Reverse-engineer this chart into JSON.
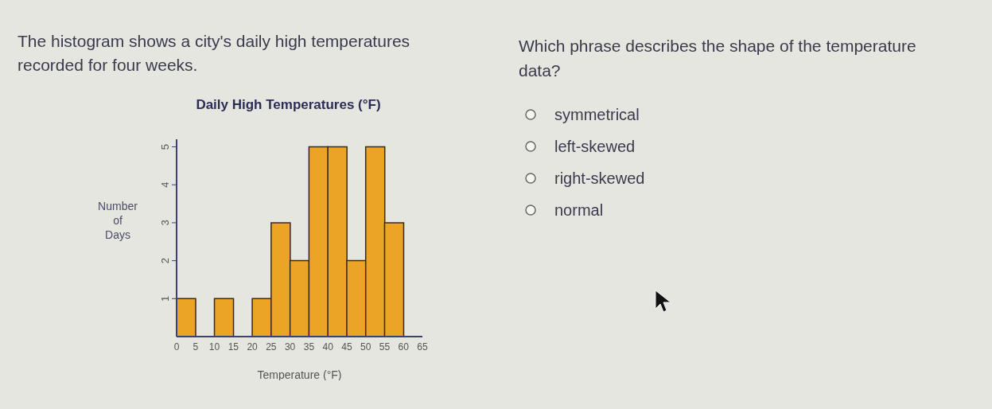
{
  "chart_data": [
    {
      "type": "histogram",
      "title": "Daily High Temperatures (°F)",
      "annotations": [
        "The histogram shows a city's daily high temperatures recorded for four weeks."
      ],
      "xlabel": "Temperature (°F)",
      "ylabel": "Number of Days",
      "bins": [
        0,
        5,
        10,
        15,
        20,
        25,
        30,
        35,
        40,
        45,
        50,
        55,
        60
      ],
      "values": [
        1,
        0,
        1,
        0,
        1,
        3,
        2,
        5,
        5,
        2,
        5,
        3
      ],
      "color": "#eba426",
      "xlim": [
        0,
        65
      ],
      "xticks": [
        0,
        5,
        10,
        15,
        20,
        25,
        30,
        35,
        40,
        45,
        50,
        55,
        60,
        65
      ],
      "ylim": [
        0,
        5.2
      ],
      "yticks": [
        1,
        2,
        3,
        4,
        5
      ]
    },
    {
      "type": "other",
      "title": "Which phrase describes the shape of the temperature data?",
      "annotations": [
        "symmetrical",
        "left-skewed",
        "right-skewed",
        "normal"
      ]
    }
  ]
}
